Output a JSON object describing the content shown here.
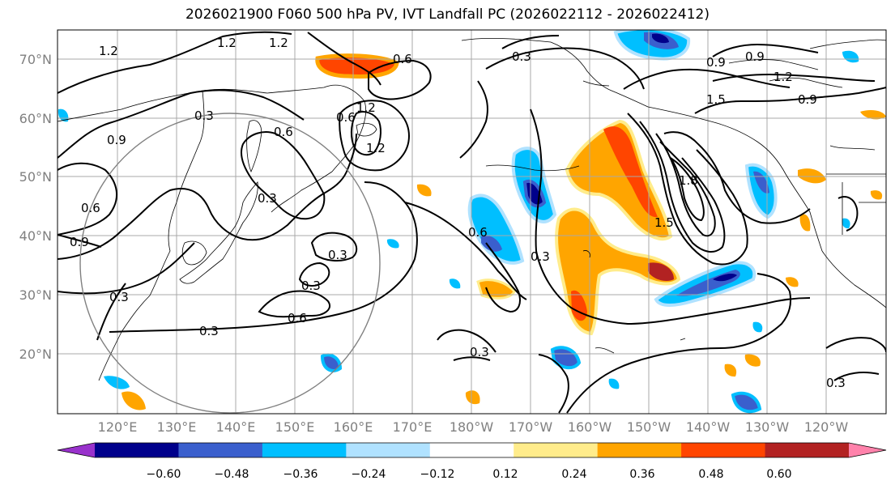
{
  "title": "2026021900 F060 500 hPa PV, IVT Landfall PC (2026022112 - 2026022412)",
  "lat_labels": [
    "70°N",
    "60°N",
    "50°N",
    "40°N",
    "30°N",
    "20°N"
  ],
  "lon_labels": [
    "120°E",
    "130°E",
    "140°E",
    "150°E",
    "160°E",
    "170°E",
    "180°W",
    "170°W",
    "160°W",
    "150°W",
    "140°W",
    "130°W",
    "120°W"
  ],
  "colorbar": {
    "ticks": [
      "−0.60",
      "−0.48",
      "−0.36",
      "−0.24",
      "−0.12",
      "0.12",
      "0.24",
      "0.36",
      "0.48",
      "0.60"
    ],
    "colors": [
      "#9932cc",
      "#00008b",
      "#3a5fcd",
      "#00bfff",
      "#b0e2ff",
      "#ffffff",
      "#ffec8b",
      "#ffa500",
      "#ff4500",
      "#b22222",
      "#ff82ab"
    ]
  },
  "contour_labels": [
    "1.2",
    "1.2",
    "1.2",
    "0.3",
    "0.6",
    "0.3",
    "0.9",
    "0.6",
    "0.9",
    "0.3",
    "0.3",
    "0.6",
    "0.3",
    "1.2",
    "0.6",
    "1.2",
    "0.3",
    "0.6",
    "0.9",
    "1.2",
    "0.9",
    "1.5",
    "1.8",
    "1.5",
    "0.9",
    "0.3",
    "0.3",
    "0.3",
    "0.6",
    "0.3"
  ]
}
